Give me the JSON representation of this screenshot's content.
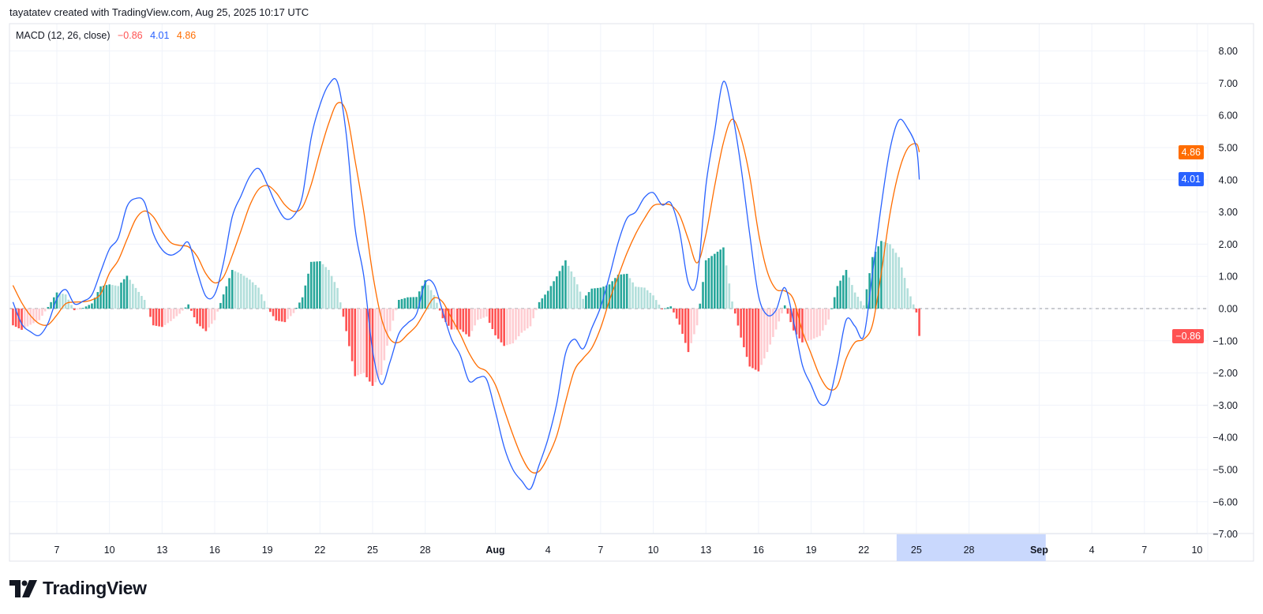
{
  "header": {
    "attribution": "tayatatev created with TradingView.com, Aug 25, 2025 10:17 UTC"
  },
  "legend": {
    "indicator": "MACD (12, 26, close)",
    "histogram_value": "−0.86",
    "macd_value": "4.01",
    "signal_value": "4.86"
  },
  "badges": {
    "signal": "4.86",
    "macd": "4.01",
    "histogram": "−0.86"
  },
  "logo": {
    "text": "TradingView"
  },
  "colors": {
    "macd": "#2962ff",
    "signal": "#ff6d00",
    "hist_up_strong": "#26a69a",
    "hist_up_weak": "#b2dfdb",
    "hist_down_strong": "#ff5252",
    "hist_down_weak": "#ffcdd2",
    "grid": "#f0f3fa",
    "axis_highlight": "#c9d8fd"
  },
  "chart_data": {
    "type": "line",
    "title": "MACD (12, 26, close)",
    "ylim": [
      -7,
      8
    ],
    "grid": true,
    "y_ticks": [
      "8.00",
      "7.00",
      "6.00",
      "5.00",
      "4.00",
      "3.00",
      "2.00",
      "1.00",
      "0.00",
      "-1.00",
      "-2.00",
      "-3.00",
      "-4.00",
      "-5.00",
      "-6.00",
      "-7.00"
    ],
    "x_ticks": [
      {
        "label": "7",
        "date": "2025-07-07"
      },
      {
        "label": "10",
        "date": "2025-07-10"
      },
      {
        "label": "13",
        "date": "2025-07-13"
      },
      {
        "label": "16",
        "date": "2025-07-16"
      },
      {
        "label": "19",
        "date": "2025-07-19"
      },
      {
        "label": "22",
        "date": "2025-07-22"
      },
      {
        "label": "25",
        "date": "2025-07-25"
      },
      {
        "label": "28",
        "date": "2025-07-28"
      },
      {
        "label": "Aug",
        "date": "2025-08-01",
        "bold": true
      },
      {
        "label": "4",
        "date": "2025-08-04"
      },
      {
        "label": "7",
        "date": "2025-08-07"
      },
      {
        "label": "10",
        "date": "2025-08-10"
      },
      {
        "label": "13",
        "date": "2025-08-13"
      },
      {
        "label": "16",
        "date": "2025-08-16"
      },
      {
        "label": "19",
        "date": "2025-08-19"
      },
      {
        "label": "22",
        "date": "2025-08-22"
      },
      {
        "label": "25",
        "date": "2025-08-25"
      },
      {
        "label": "28",
        "date": "2025-08-28"
      },
      {
        "label": "Sep",
        "date": "2025-09-01",
        "bold": true
      },
      {
        "label": "4",
        "date": "2025-09-04"
      },
      {
        "label": "7",
        "date": "2025-09-07"
      },
      {
        "label": "10",
        "date": "2025-09-10"
      }
    ],
    "x_highlight": [
      "2025-08-23 21:00",
      "2025-09-01 09:00"
    ],
    "x": [
      "2025-07-04 12:00",
      "2025-07-05 00:00",
      "2025-07-05 12:00",
      "2025-07-06 00:00",
      "2025-07-06 12:00",
      "2025-07-07 00:00",
      "2025-07-07 12:00",
      "2025-07-08 00:00",
      "2025-07-08 12:00",
      "2025-07-09 00:00",
      "2025-07-09 12:00",
      "2025-07-10 00:00",
      "2025-07-10 12:00",
      "2025-07-11 00:00",
      "2025-07-11 12:00",
      "2025-07-12 00:00",
      "2025-07-12 12:00",
      "2025-07-13 00:00",
      "2025-07-13 12:00",
      "2025-07-14 00:00",
      "2025-07-14 12:00",
      "2025-07-15 00:00",
      "2025-07-15 12:00",
      "2025-07-16 00:00",
      "2025-07-16 12:00",
      "2025-07-17 00:00",
      "2025-07-17 12:00",
      "2025-07-18 00:00",
      "2025-07-18 12:00",
      "2025-07-19 00:00",
      "2025-07-19 12:00",
      "2025-07-20 00:00",
      "2025-07-20 12:00",
      "2025-07-21 00:00",
      "2025-07-21 12:00",
      "2025-07-22 00:00",
      "2025-07-22 12:00",
      "2025-07-23 00:00",
      "2025-07-23 12:00",
      "2025-07-24 00:00",
      "2025-07-24 12:00",
      "2025-07-25 00:00",
      "2025-07-25 12:00",
      "2025-07-26 00:00",
      "2025-07-26 12:00",
      "2025-07-27 00:00",
      "2025-07-27 12:00",
      "2025-07-28 00:00",
      "2025-07-28 12:00",
      "2025-07-29 00:00",
      "2025-07-29 12:00",
      "2025-07-30 00:00",
      "2025-07-30 12:00",
      "2025-07-31 00:00",
      "2025-07-31 12:00",
      "2025-08-01 00:00",
      "2025-08-01 12:00",
      "2025-08-02 00:00",
      "2025-08-02 12:00",
      "2025-08-03 00:00",
      "2025-08-03 12:00",
      "2025-08-04 00:00",
      "2025-08-04 12:00",
      "2025-08-05 00:00",
      "2025-08-05 12:00",
      "2025-08-06 00:00",
      "2025-08-06 12:00",
      "2025-08-07 00:00",
      "2025-08-07 12:00",
      "2025-08-08 00:00",
      "2025-08-08 12:00",
      "2025-08-09 00:00",
      "2025-08-09 12:00",
      "2025-08-10 00:00",
      "2025-08-10 12:00",
      "2025-08-11 00:00",
      "2025-08-11 12:00",
      "2025-08-12 00:00",
      "2025-08-12 12:00",
      "2025-08-13 00:00",
      "2025-08-13 12:00",
      "2025-08-14 00:00",
      "2025-08-14 12:00",
      "2025-08-15 00:00",
      "2025-08-15 12:00",
      "2025-08-16 00:00",
      "2025-08-16 12:00",
      "2025-08-17 00:00",
      "2025-08-17 12:00",
      "2025-08-18 00:00",
      "2025-08-18 12:00",
      "2025-08-19 00:00",
      "2025-08-19 12:00",
      "2025-08-20 00:00",
      "2025-08-20 12:00",
      "2025-08-21 00:00",
      "2025-08-21 12:00",
      "2025-08-22 00:00",
      "2025-08-22 12:00",
      "2025-08-23 00:00",
      "2025-08-23 12:00",
      "2025-08-24 00:00",
      "2025-08-24 12:00",
      "2025-08-25 00:00",
      "2025-08-25 04:00"
    ],
    "series": [
      {
        "key": "macd",
        "values": [
          0.2,
          -0.48,
          -0.72,
          -0.83,
          -0.45,
          0.3,
          0.59,
          0.15,
          0.23,
          0.43,
          1.15,
          1.85,
          2.2,
          3.17,
          3.42,
          3.3,
          2.33,
          1.83,
          1.66,
          1.8,
          2.05,
          1.15,
          0.38,
          0.44,
          1.42,
          2.85,
          3.5,
          4.1,
          4.35,
          3.85,
          3.23,
          2.8,
          2.88,
          3.5,
          5.3,
          6.32,
          6.95,
          7.02,
          5.4,
          2.5,
          1.0,
          -1.3,
          -2.35,
          -1.65,
          -0.78,
          -0.45,
          -0.17,
          0.8,
          0.75,
          -0.1,
          -0.95,
          -1.45,
          -2.25,
          -2.15,
          -2.2,
          -3.2,
          -4.3,
          -5.0,
          -5.35,
          -5.6,
          -4.85,
          -4.05,
          -2.95,
          -1.4,
          -0.95,
          -1.25,
          -0.6,
          0.05,
          1.0,
          2.05,
          2.8,
          3.0,
          3.45,
          3.6,
          3.22,
          3.28,
          2.4,
          0.8,
          0.9,
          3.8,
          5.5,
          7.05,
          6.1,
          4.4,
          2.3,
          0.4,
          -0.2,
          -0.05,
          0.65,
          -0.4,
          -1.75,
          -2.37,
          -2.95,
          -2.84,
          -1.7,
          -0.35,
          -0.55,
          -0.85,
          1.1,
          3.2,
          4.95,
          5.85,
          5.6,
          5.0,
          4.01
        ]
      },
      {
        "key": "signal",
        "values": [
          0.72,
          0.18,
          -0.22,
          -0.47,
          -0.5,
          -0.2,
          0.15,
          0.2,
          0.21,
          0.27,
          0.46,
          1.1,
          1.5,
          2.15,
          2.78,
          3.03,
          2.85,
          2.4,
          2.05,
          1.96,
          1.92,
          1.62,
          1.08,
          0.8,
          0.98,
          1.65,
          2.42,
          3.2,
          3.7,
          3.82,
          3.6,
          3.22,
          3.02,
          3.15,
          3.85,
          4.85,
          5.75,
          6.38,
          6.1,
          4.6,
          3.0,
          1.1,
          -0.29,
          -0.95,
          -1.05,
          -0.8,
          -0.53,
          -0.08,
          0.33,
          0.2,
          -0.3,
          -0.8,
          -1.38,
          -1.8,
          -1.95,
          -2.37,
          -3.14,
          -3.92,
          -4.6,
          -5.05,
          -5.05,
          -4.6,
          -3.95,
          -2.9,
          -1.93,
          -1.55,
          -1.22,
          -0.6,
          0.25,
          1.0,
          1.72,
          2.32,
          2.8,
          3.19,
          3.24,
          3.21,
          2.9,
          2.15,
          1.42,
          2.3,
          3.8,
          5.15,
          5.88,
          5.3,
          4.1,
          2.35,
          1.15,
          0.6,
          0.55,
          0.28,
          -0.7,
          -1.4,
          -2.1,
          -2.5,
          -2.4,
          -1.55,
          -1.05,
          -0.95,
          -0.5,
          1.1,
          2.95,
          4.25,
          4.97,
          5.12,
          4.86
        ]
      }
    ]
  }
}
